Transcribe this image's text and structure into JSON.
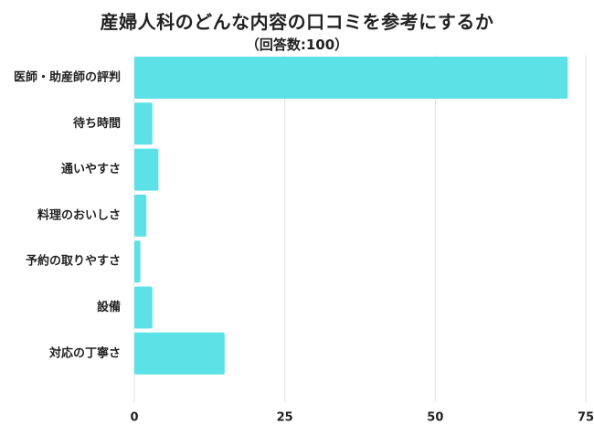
{
  "title": "産婦人科のどんな内容の口コミを参考にするか",
  "subtitle": "（回答数:100）",
  "colors": {
    "bar": "#5ce1e6",
    "grid": "#e0e0e0",
    "text": "#222222"
  },
  "chart_data": {
    "type": "bar",
    "orientation": "horizontal",
    "categories": [
      "医師・助産師の評判",
      "待ち時間",
      "通いやすさ",
      "料理のおいしさ",
      "予約の取りやすさ",
      "設備",
      "対応の丁寧さ"
    ],
    "values": [
      72,
      3,
      4,
      2,
      1,
      3,
      15
    ],
    "xlim": [
      0,
      75
    ],
    "xticks": [
      0,
      25,
      50,
      75
    ],
    "grid": true,
    "legend": "none"
  }
}
